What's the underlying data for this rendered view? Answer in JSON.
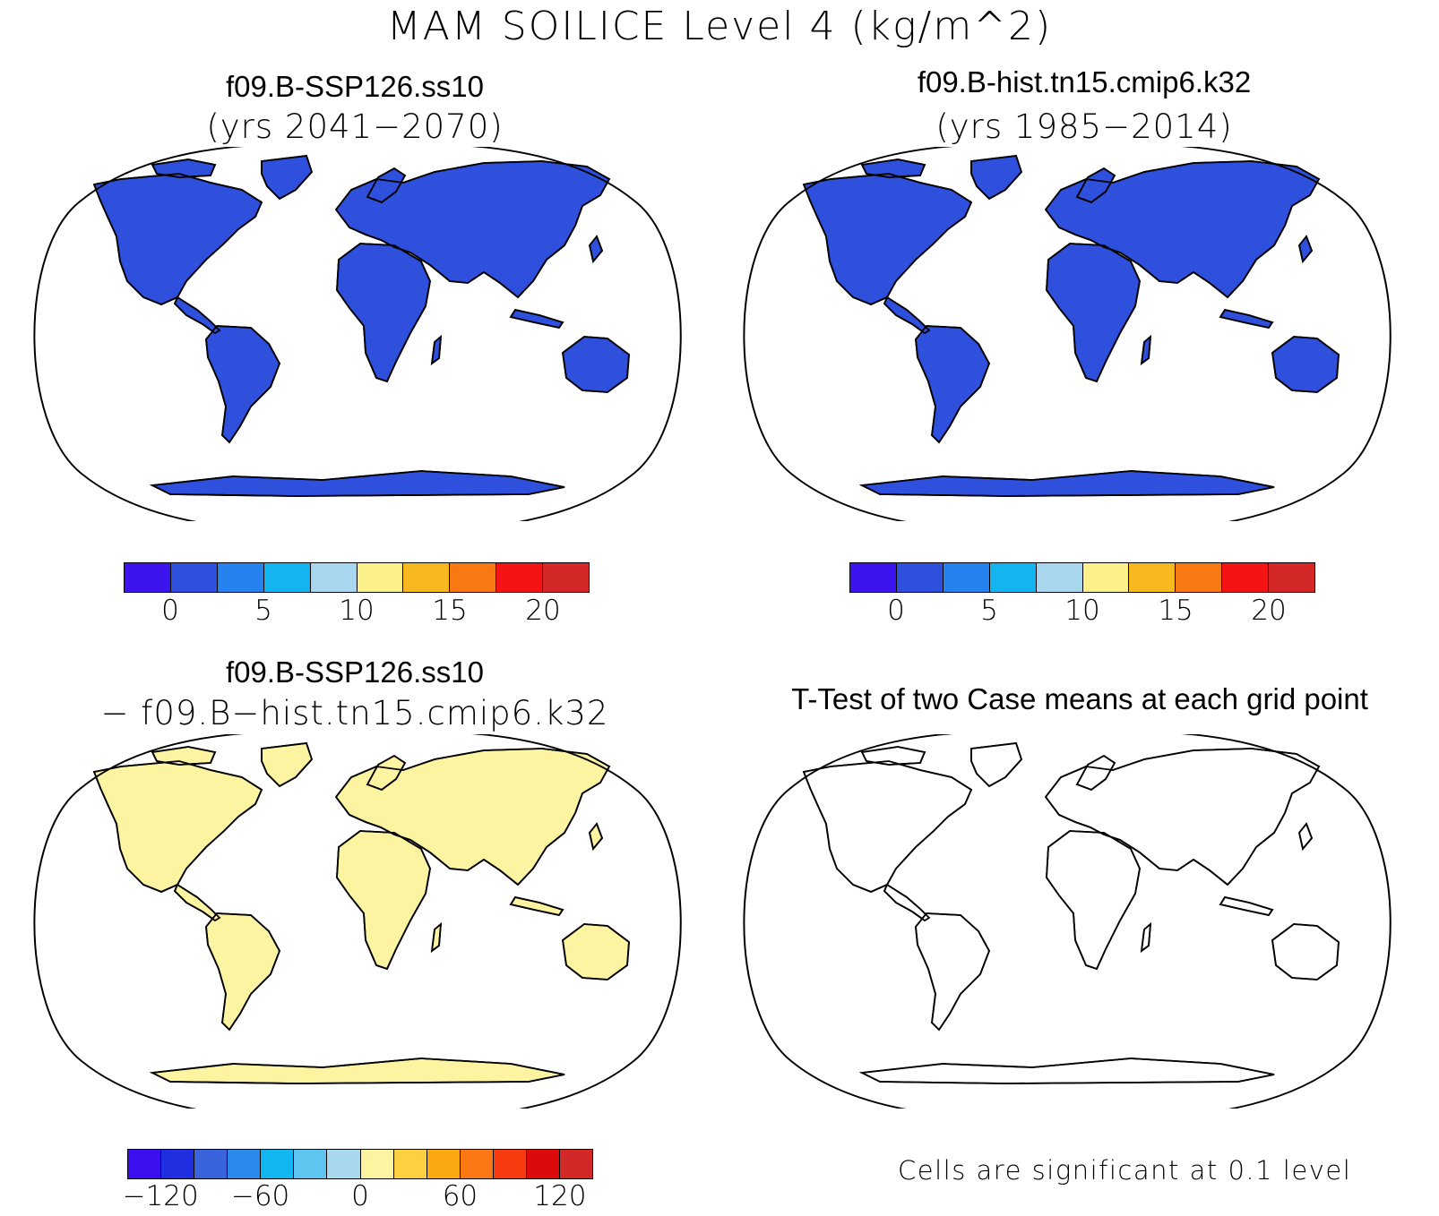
{
  "title": "MAM SOILICE Level 4 (kg/m^2)",
  "panels": {
    "top_left": {
      "title": "f09.B-SSP126.ss10",
      "subtitle": "(yrs 2041−2070)"
    },
    "top_right": {
      "title": "f09.B-hist.tn15.cmip6.k32",
      "subtitle": "(yrs 1985−2014)"
    },
    "bottom_left": {
      "title": "f09.B-SSP126.ss10",
      "subtitle": "− f09.B−hist.tn15.cmip6.k32"
    },
    "bottom_right": {
      "title": "T-Test of two Case means at each grid point",
      "note": "Cells are significant at 0.1 level"
    }
  },
  "colorbar_abs": {
    "colors": [
      "#3d14ee",
      "#2e50dc",
      "#2682ee",
      "#14b4f0",
      "#a7d6ee",
      "#fcf08a",
      "#f8b820",
      "#f87814",
      "#f41414",
      "#d42828"
    ],
    "tick_labels": [
      "0",
      "5",
      "10",
      "15",
      "20"
    ]
  },
  "colorbar_diff": {
    "colors": [
      "#3c0ff0",
      "#1e2ee0",
      "#3a64dc",
      "#2a8aec",
      "#12b6f0",
      "#5ec4f0",
      "#a8d8ee",
      "#fcf4a0",
      "#fcd040",
      "#fca810",
      "#fc7814",
      "#f83c10",
      "#dc0a0a",
      "#d22828"
    ],
    "tick_labels": [
      "−120",
      "−60",
      "0",
      "60",
      "120"
    ]
  },
  "legend_colors": {
    "land_fill": "#2e50dc",
    "diff_fill": "#fcf4a0",
    "signif_fill": "#f41414"
  }
}
